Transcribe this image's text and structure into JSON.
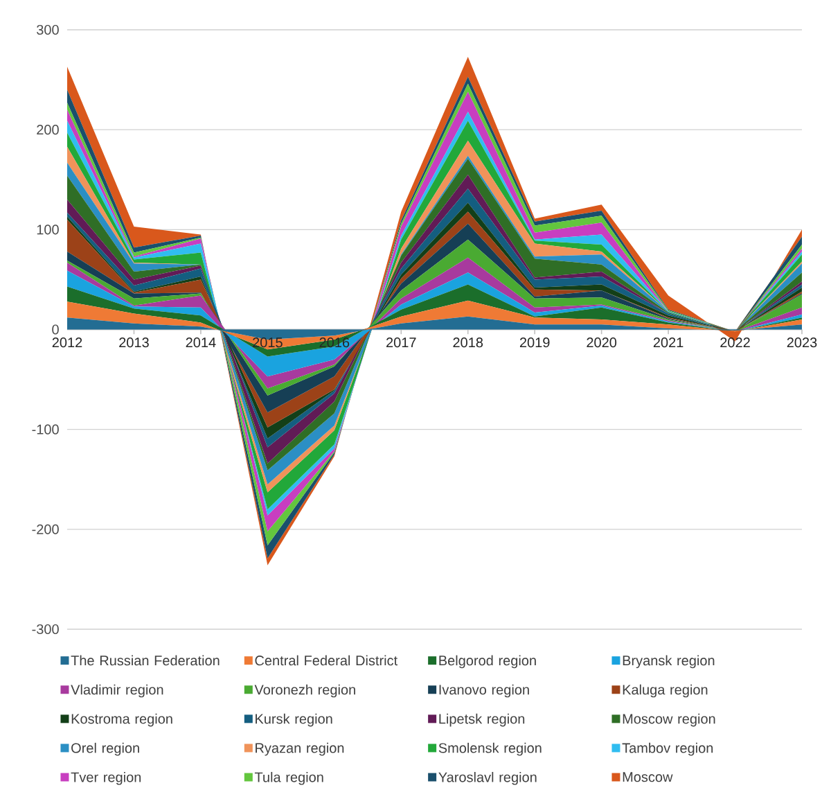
{
  "chart_data": {
    "type": "area",
    "stacked": true,
    "categories": [
      "2012",
      "2013",
      "2014",
      "2015",
      "2016",
      "2017",
      "2018",
      "2019",
      "2020",
      "2021",
      "2022",
      "2023"
    ],
    "series": [
      {
        "name": "The Russian Federation",
        "color": "#236d93",
        "values": [
          12,
          6,
          3,
          -10,
          -6,
          6,
          13,
          5,
          5,
          1,
          -1,
          5
        ]
      },
      {
        "name": "Central Federal District",
        "color": "#ef7a35",
        "values": [
          16,
          10,
          4,
          -10,
          -4,
          7,
          16,
          7,
          5,
          4,
          -1,
          5
        ]
      },
      {
        "name": "Belgorod region",
        "color": "#1b6e2b",
        "values": [
          15,
          5,
          7,
          -7,
          -7,
          7,
          16,
          1,
          12,
          2,
          0,
          2
        ]
      },
      {
        "name": "Bryansk region",
        "color": "#1aa3df",
        "values": [
          16,
          2,
          8,
          -20,
          -13,
          5,
          12,
          4,
          2,
          1,
          0,
          3
        ]
      },
      {
        "name": "Vladimir region",
        "color": "#a83a9e",
        "values": [
          8,
          1,
          12,
          -12,
          -5,
          6,
          15,
          5,
          1,
          1,
          0,
          7
        ]
      },
      {
        "name": "Voronezh region",
        "color": "#4aaa32",
        "values": [
          2,
          7,
          2,
          -7,
          -2,
          8,
          18,
          9,
          7,
          1,
          0,
          13
        ]
      },
      {
        "name": "Ivanovo region",
        "color": "#163f55",
        "values": [
          9,
          5,
          1,
          -17,
          -10,
          7,
          16,
          2,
          7,
          1,
          0,
          1
        ]
      },
      {
        "name": "Kaluga region",
        "color": "#9c4218",
        "values": [
          32,
          1,
          13,
          -15,
          -13,
          5,
          12,
          7,
          0,
          1,
          0,
          2
        ]
      },
      {
        "name": "Kostroma region",
        "color": "#133f18",
        "values": [
          3,
          1,
          3,
          -11,
          -1,
          4,
          9,
          2,
          6,
          2,
          0,
          4
        ]
      },
      {
        "name": "Kursk region",
        "color": "#145e80",
        "values": [
          4,
          6,
          8,
          -9,
          -3,
          6,
          14,
          8,
          8,
          2,
          0,
          3
        ]
      },
      {
        "name": "Lipetsk region",
        "color": "#611b56",
        "values": [
          13,
          6,
          3,
          -16,
          -8,
          6,
          14,
          2,
          5,
          0,
          0,
          3
        ]
      },
      {
        "name": "Moscow region",
        "color": "#2f6e26",
        "values": [
          24,
          8,
          1,
          -7,
          -12,
          7,
          16,
          19,
          7,
          1,
          0,
          9
        ]
      },
      {
        "name": "Orel region",
        "color": "#2b8fc4",
        "values": [
          13,
          8,
          0,
          -14,
          -12,
          1,
          3,
          2,
          10,
          1,
          0,
          9
        ]
      },
      {
        "name": "Ryazan region",
        "color": "#f0935a",
        "values": [
          16,
          1,
          0,
          -8,
          -5,
          6,
          15,
          13,
          3,
          0,
          0,
          2
        ]
      },
      {
        "name": "Smolensk region",
        "color": "#22a83a",
        "values": [
          14,
          3,
          12,
          -17,
          -14,
          9,
          20,
          3,
          7,
          0,
          0,
          7
        ]
      },
      {
        "name": "Tambov region",
        "color": "#30bdf0",
        "values": [
          12,
          2,
          9,
          -6,
          -4,
          4,
          9,
          1,
          10,
          0,
          0,
          3
        ]
      },
      {
        "name": "Tver region",
        "color": "#c83ec0",
        "values": [
          11,
          1,
          5,
          -16,
          -3,
          9,
          20,
          7,
          12,
          0,
          0,
          3
        ]
      },
      {
        "name": "Tula region",
        "color": "#63c63e",
        "values": [
          7,
          4,
          1,
          -14,
          -1,
          3,
          8,
          7,
          7,
          1,
          0,
          4
        ]
      },
      {
        "name": "Yaroslavl region",
        "color": "#1a4f6c",
        "values": [
          13,
          5,
          2,
          -13,
          -2,
          3,
          7,
          4,
          5,
          1,
          0,
          8
        ]
      },
      {
        "name": "Moscow",
        "color": "#d9581c",
        "values": [
          23,
          21,
          1,
          -7,
          -2,
          9,
          20,
          3,
          6,
          14,
          -10,
          7
        ]
      }
    ],
    "ylim": [
      -300,
      300
    ],
    "yticks": [
      -300,
      -200,
      -100,
      0,
      100,
      200,
      300
    ],
    "grid": "y",
    "legend": "bottom"
  }
}
